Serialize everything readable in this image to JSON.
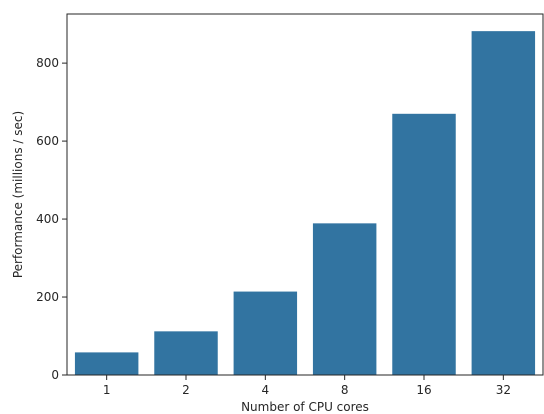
{
  "chart_data": {
    "type": "bar",
    "categories": [
      "1",
      "2",
      "4",
      "8",
      "16",
      "32"
    ],
    "values": [
      58,
      112,
      214,
      389,
      670,
      882
    ],
    "title": "",
    "xlabel": "Number of CPU cores",
    "ylabel": "Performance (millions / sec)",
    "ylim": [
      0,
      926
    ],
    "yticks": [
      0,
      200,
      400,
      600,
      800
    ],
    "grid": false,
    "bar_color": "#3274a1"
  }
}
